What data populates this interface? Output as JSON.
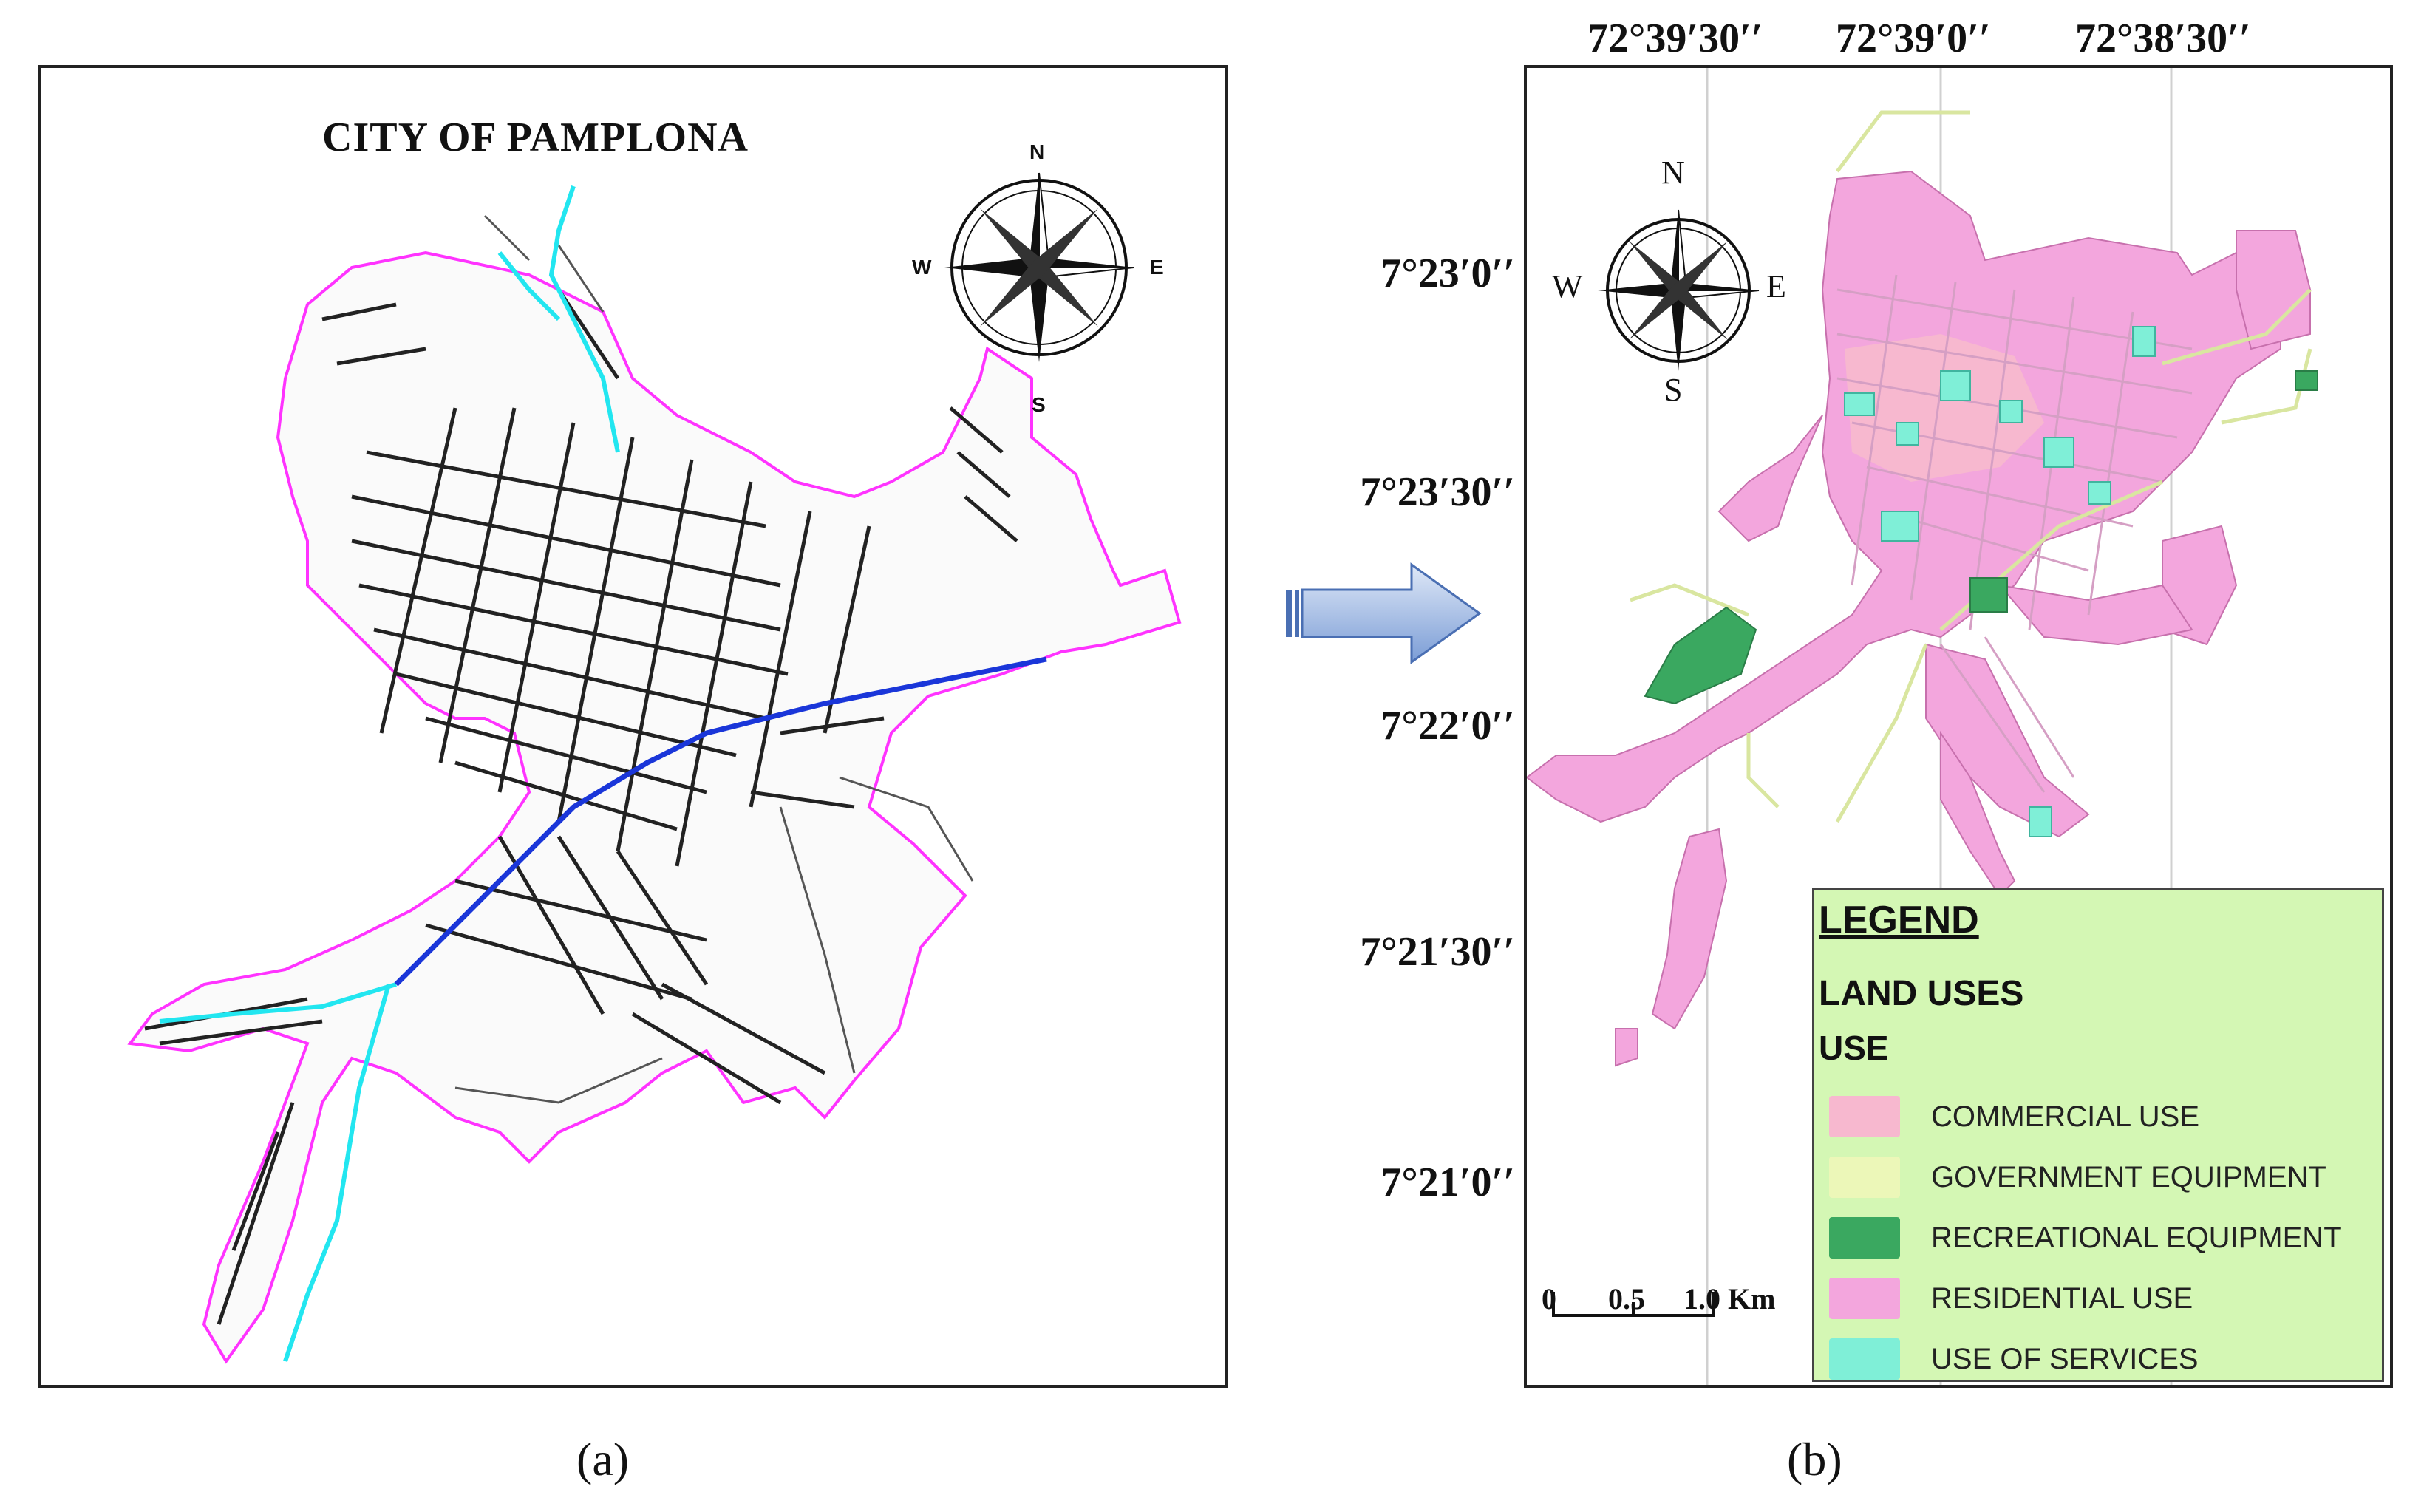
{
  "panel_a": {
    "title": "CITY OF PAMPLONA",
    "caption": "(a)",
    "compass": {
      "n": "N",
      "s": "S",
      "e": "E",
      "w": "W"
    },
    "colors": {
      "boundary": "#ff33ff",
      "river_main": "#1a36d9",
      "river_tributary": "#22e6f0",
      "streets": "#222222"
    }
  },
  "panel_b": {
    "caption": "(b)",
    "longitude_labels": [
      "72°39′30′′",
      "72°39′0′′",
      "72°38′30′′"
    ],
    "latitude_labels": [
      "7°23′0′′",
      "7°23′30′′",
      "7°22′0′′",
      "7°21′30′′",
      "7°21′0′′"
    ],
    "compass": {
      "n": "N",
      "s": "S",
      "e": "E",
      "w": "W"
    },
    "scale_bar": {
      "labels": [
        "0",
        "0.5",
        "1.0 Km"
      ]
    },
    "legend": {
      "title": "LEGEND",
      "subtitle": "LAND USES",
      "field": "USE",
      "items": [
        {
          "label": "COMMERCIAL USE",
          "color": "#f7b8cf"
        },
        {
          "label": "GOVERNMENT EQUIPMENT",
          "color": "#ecf7b8"
        },
        {
          "label": "RECREATIONAL EQUIPMENT",
          "color": "#3aa860"
        },
        {
          "label": "RESIDENTIAL USE",
          "color": "#f3a6dd"
        },
        {
          "label": "USE OF SERVICES",
          "color": "#7fefd7"
        }
      ]
    }
  }
}
